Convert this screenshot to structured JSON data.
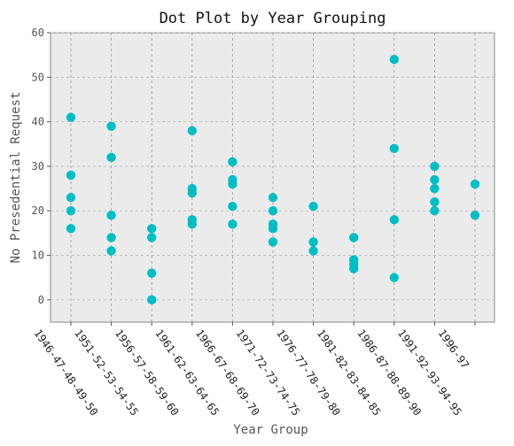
{
  "chart_data": {
    "type": "scatter",
    "title": "Dot Plot by Year Grouping",
    "xlabel": "Year Group",
    "ylabel": "No Presedential Request",
    "ylim": [
      -5,
      60
    ],
    "yticks": [
      0,
      10,
      20,
      30,
      40,
      50,
      60
    ],
    "grid": true,
    "grid_style": "dashed",
    "marker_color": "#00BFC4",
    "background_color": "#EBEBEB",
    "categories": [
      "1946-47-48-49-50",
      "1951-52-53-54-55",
      "1956-57-58-59-60",
      "1961-62-63-64-65",
      "1966-67-68-69-70",
      "1971-72-73-74-75",
      "1976-77-78-79-80",
      "1981-82-83-84-85",
      "1986-87-88-89-90",
      "1991-92-93-94-95",
      "1996-97"
    ],
    "series": [
      {
        "values": [
          [
            16,
            20,
            23,
            28,
            41
          ],
          [
            11,
            14,
            19,
            32,
            39
          ],
          [
            0,
            6,
            14,
            16
          ],
          [
            17,
            18,
            24,
            25,
            38
          ],
          [
            17,
            21,
            26,
            27,
            31
          ],
          [
            13,
            16,
            17,
            20,
            23
          ],
          [
            11,
            13,
            21
          ],
          [
            7,
            8,
            9,
            14
          ],
          [
            5,
            18,
            34,
            54
          ],
          [
            20,
            22,
            25,
            27,
            30
          ],
          [
            19,
            26
          ]
        ]
      }
    ]
  }
}
